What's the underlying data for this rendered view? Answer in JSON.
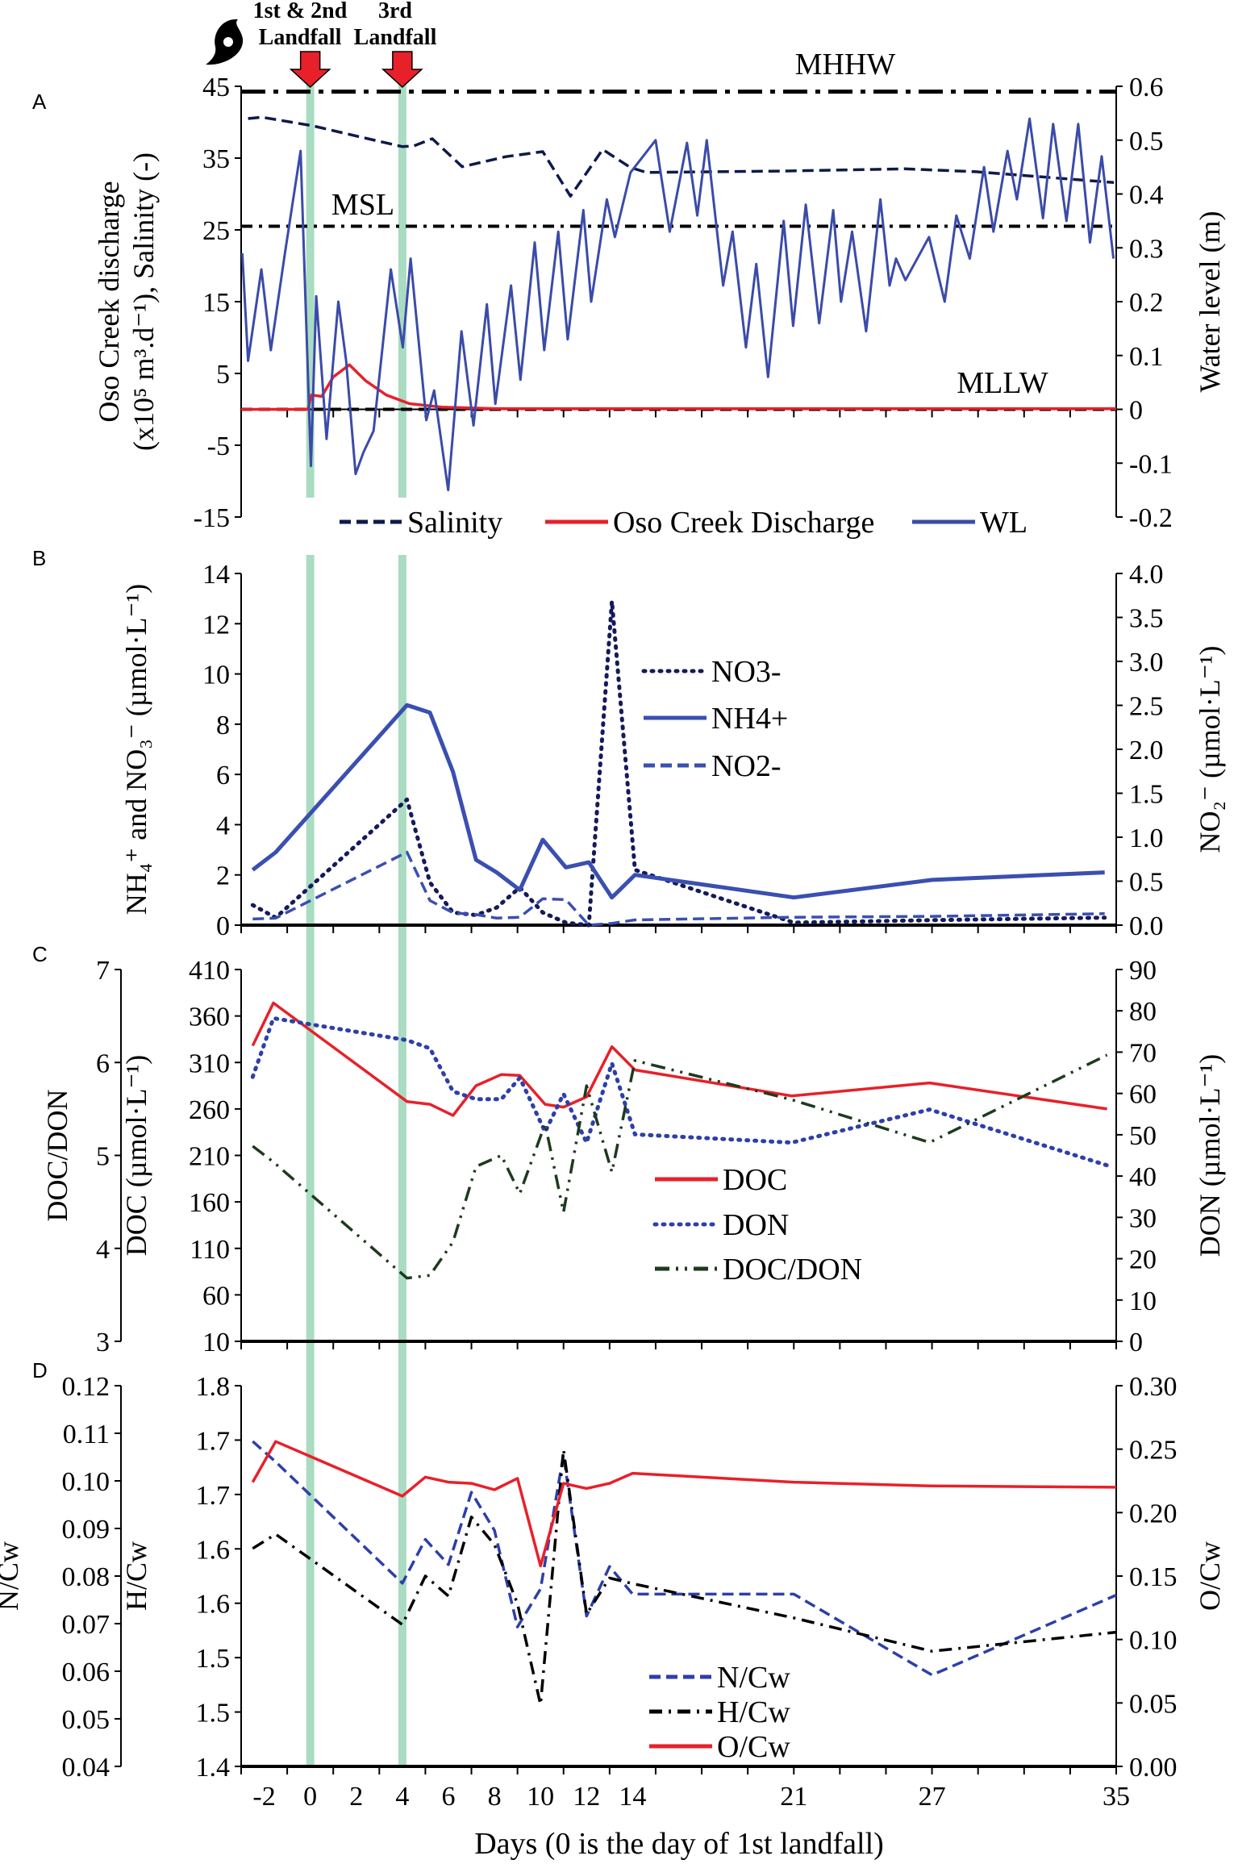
{
  "figure": {
    "annotations": {
      "first_second_landfall_line1": "1st & 2nd",
      "first_second_landfall_line2": "Landfall",
      "third_landfall_line1": "3rd",
      "third_landfall_line2": "Landfall"
    },
    "landfall_days": [
      0,
      4
    ],
    "band_color": "#a9dcc1",
    "arrow_color": "#e8202a",
    "x_axis": {
      "title": "Days (0 is the day of 1st landfall)",
      "xlim": [
        -3,
        35
      ],
      "tick_labels": [
        "-2",
        "0",
        "2",
        "4",
        "6",
        "8",
        "10",
        "12",
        "14",
        "21",
        "27",
        "35"
      ],
      "tick_values": [
        -2,
        0,
        2,
        4,
        6,
        8,
        10,
        12,
        14,
        21,
        27,
        35
      ]
    }
  },
  "chart_data": [
    {
      "letter": "A",
      "type": "line",
      "axes": {
        "left": {
          "label_line1": "Oso Creek discharge",
          "label_line2": "(x10⁵ m³.d⁻¹), Salinity (-)",
          "range": [
            -15,
            45
          ],
          "tick_labels": [
            "-15",
            "-5",
            "5",
            "15",
            "25",
            "35",
            "45"
          ]
        },
        "right": {
          "label": "Water level (m)",
          "range": [
            -0.2,
            0.6
          ],
          "tick_labels": [
            "-0.2",
            "-0.1",
            "0",
            "0.1",
            "0.2",
            "0.3",
            "0.4",
            "0.5",
            "0.6"
          ]
        }
      },
      "reference_lines": [
        {
          "name": "MHHW",
          "axis": "right",
          "value": 0.59
        },
        {
          "name": "MSL",
          "axis": "right",
          "value": 0.34
        },
        {
          "name": "MLLW",
          "axis": "right",
          "value": 0.0
        }
      ],
      "series": [
        {
          "name": "Salinity",
          "axis": "left",
          "color": "#0d1a4a",
          "style": "dash",
          "x": [
            -2.7,
            -2.1,
            0.1,
            2.1,
            4.0,
            4.5,
            5.3,
            6.6,
            8.5,
            10.1,
            11.3,
            12.7,
            13.9,
            14.6,
            20.7,
            25.8,
            28.9,
            34.9
          ],
          "y": [
            40.5,
            40.7,
            39.5,
            38.0,
            36.6,
            36.7,
            37.7,
            33.8,
            35.2,
            35.9,
            29.7,
            36.2,
            33.7,
            33.0,
            33.2,
            33.5,
            33.1,
            31.6
          ]
        },
        {
          "name": "Oso Creek Discharge",
          "axis": "left",
          "color": "#e8202a",
          "style": "solid",
          "x": [
            -3,
            -0.1,
            0.05,
            0.5,
            1.0,
            1.7,
            2.4,
            3.3,
            4.3,
            5.7,
            8,
            35
          ],
          "y": [
            0,
            0,
            2.0,
            1.8,
            4.5,
            6.2,
            4.0,
            2.0,
            0.8,
            0.3,
            0.1,
            0.1
          ]
        },
        {
          "name": "WL",
          "axis": "right",
          "color": "#3b4ba8",
          "style": "solid",
          "x": [
            -2.95,
            -2.7,
            -2.12,
            -1.71,
            -1.1,
            -0.42,
            0.03,
            0.26,
            0.71,
            1.22,
            1.56,
            1.97,
            2.31,
            2.75,
            3.5,
            4.02,
            4.36,
            5.04,
            5.38,
            5.99,
            6.57,
            7.09,
            7.67,
            8.04,
            8.72,
            9.13,
            9.75,
            10.16,
            10.77,
            11.18,
            11.86,
            12.2,
            12.88,
            13.23,
            13.91,
            15.0,
            15.61,
            16.36,
            16.81,
            17.22,
            17.93,
            18.34,
            18.92,
            19.37,
            19.88,
            20.56,
            20.97,
            21.52,
            22.1,
            22.71,
            23.05,
            23.53,
            24.14,
            24.76,
            25.16,
            25.44,
            25.85,
            26.87,
            27.55,
            28.06,
            28.64,
            29.26,
            29.67,
            30.28,
            30.69,
            31.24,
            31.82,
            32.26,
            32.84,
            33.35,
            33.86,
            34.37,
            34.88
          ],
          "y": [
            0.29,
            0.09,
            0.26,
            0.11,
            0.29,
            0.48,
            -0.105,
            0.21,
            -0.055,
            0.2,
            0.09,
            -0.12,
            -0.08,
            -0.04,
            0.26,
            0.115,
            0.28,
            -0.02,
            0.035,
            -0.15,
            0.145,
            -0.03,
            0.195,
            0.01,
            0.23,
            0.055,
            0.31,
            0.11,
            0.33,
            0.13,
            0.37,
            0.2,
            0.39,
            0.32,
            0.44,
            0.5,
            0.33,
            0.495,
            0.36,
            0.5,
            0.23,
            0.33,
            0.115,
            0.27,
            0.06,
            0.35,
            0.155,
            0.38,
            0.16,
            0.37,
            0.2,
            0.33,
            0.145,
            0.39,
            0.23,
            0.28,
            0.24,
            0.32,
            0.2,
            0.36,
            0.28,
            0.45,
            0.33,
            0.48,
            0.39,
            0.54,
            0.355,
            0.53,
            0.35,
            0.53,
            0.31,
            0.47,
            0.28
          ]
        }
      ],
      "legend": {
        "placement": "bottom",
        "entries": [
          "Salinity",
          "Oso Creek Discharge",
          "WL"
        ]
      }
    },
    {
      "letter": "B",
      "type": "line",
      "axes": {
        "left": {
          "label": "NH₄⁺ and NO₃⁻ (µmol·L⁻¹)",
          "range": [
            0,
            14
          ],
          "tick_labels": [
            "0",
            "2",
            "4",
            "6",
            "8",
            "10",
            "12",
            "14"
          ]
        },
        "right": {
          "label": "NO₂⁻ (µmol·L⁻¹)",
          "range": [
            0,
            4
          ],
          "tick_labels": [
            "0.0",
            "0.5",
            "1.0",
            "1.5",
            "2.0",
            "2.5",
            "3.0",
            "3.5",
            "4.0"
          ]
        }
      },
      "series": [
        {
          "name": "NO3-",
          "axis": "left",
          "color": "#141a5a",
          "style": "dot",
          "x": [
            -2.5,
            -1.5,
            4.2,
            5.2,
            6.2,
            7.2,
            8.1,
            9.1,
            10.1,
            11.1,
            12.1,
            13.1,
            14.1,
            21,
            27,
            34.5
          ],
          "y": [
            0.8,
            0.3,
            5.0,
            1.7,
            0.5,
            0.4,
            0.7,
            1.5,
            0.5,
            0.1,
            0.0,
            12.9,
            2.2,
            0.1,
            0.2,
            0.3
          ]
        },
        {
          "name": "NH4+",
          "axis": "left",
          "color": "#3a4fb0",
          "style": "solid",
          "x": [
            -2.5,
            -1.5,
            4.2,
            5.2,
            6.2,
            7.2,
            8.1,
            9.1,
            10.1,
            11.1,
            12.1,
            13.1,
            14.1,
            21,
            27,
            34.5
          ],
          "y": [
            2.2,
            2.9,
            8.76,
            8.46,
            6.1,
            2.6,
            2.1,
            1.4,
            3.4,
            2.3,
            2.5,
            1.1,
            2.0,
            1.1,
            1.8,
            2.1
          ]
        },
        {
          "name": "NO2-",
          "axis": "right",
          "color": "#3a4fb0",
          "style": "dash",
          "x": [
            -2.5,
            -1.5,
            4.2,
            5.2,
            6.2,
            7.2,
            8.1,
            9.1,
            10.1,
            11.1,
            12.1,
            13.1,
            14.1,
            21,
            27,
            34.5
          ],
          "y": [
            0.07,
            0.08,
            0.83,
            0.28,
            0.14,
            0.12,
            0.08,
            0.09,
            0.3,
            0.29,
            0.0,
            0.02,
            0.06,
            0.09,
            0.1,
            0.13
          ]
        }
      ],
      "legend": {
        "placement": "center",
        "entries": [
          "NO3-",
          "NH4+",
          "NO2-"
        ]
      }
    },
    {
      "letter": "C",
      "type": "line",
      "axes": {
        "far_left": {
          "label": "DOC/DON",
          "range": [
            3,
            7
          ],
          "tick_labels": [
            "3",
            "4",
            "5",
            "6",
            "7"
          ]
        },
        "left": {
          "label": "DOC (µmol·L⁻¹)",
          "range": [
            10,
            410
          ],
          "tick_labels": [
            "10",
            "60",
            "110",
            "160",
            "210",
            "260",
            "310",
            "360",
            "410"
          ]
        },
        "right": {
          "label": "DON (µmol·L⁻¹)",
          "range": [
            0,
            90
          ],
          "tick_labels": [
            "0",
            "10",
            "20",
            "30",
            "40",
            "50",
            "60",
            "70",
            "80",
            "90"
          ]
        }
      },
      "series": [
        {
          "name": "DOC",
          "axis": "left",
          "color": "#e8202a",
          "style": "solid",
          "x": [
            -2.5,
            -1.6,
            4.2,
            5.2,
            6.2,
            7.2,
            8.3,
            9.1,
            10.2,
            11.0,
            12.0,
            13.1,
            14.1,
            20.9,
            26.9,
            34.6
          ],
          "y": [
            328,
            374,
            268,
            265,
            253,
            285,
            297,
            296,
            265,
            262,
            273,
            327,
            302,
            274,
            288,
            260
          ]
        },
        {
          "name": "DON",
          "axis": "right",
          "color": "#2d3fa8",
          "style": "dot",
          "x": [
            -2.5,
            -1.6,
            4.2,
            5.2,
            6.2,
            7.2,
            8.3,
            9.1,
            10.2,
            11.0,
            12.0,
            13.1,
            14.1,
            20.9,
            26.9,
            34.6
          ],
          "y": [
            64,
            78.2,
            72.9,
            70.9,
            60.5,
            58.6,
            58.6,
            63.8,
            50.7,
            59.9,
            48.1,
            67.3,
            50.1,
            48.1,
            56.1,
            42.6
          ]
        },
        {
          "name": "DOC/DON",
          "axis": "far_left",
          "color": "#1e3a1e",
          "style": "dashdotdot",
          "x": [
            -2.5,
            -1.6,
            4.2,
            5.2,
            6.2,
            7.2,
            8.3,
            9.1,
            10.2,
            11.0,
            12.0,
            13.1,
            14.1,
            20.9,
            26.9,
            34.6
          ],
          "y": [
            5.1,
            4.93,
            3.68,
            3.71,
            4.07,
            4.88,
            5.0,
            4.59,
            5.34,
            4.39,
            5.75,
            4.82,
            6.02,
            5.6,
            5.14,
            6.08
          ]
        }
      ],
      "legend": {
        "placement": "center",
        "entries": [
          "DOC",
          "DON",
          "DOC/DON"
        ]
      }
    },
    {
      "letter": "D",
      "type": "line",
      "axes": {
        "far_left": {
          "label": "N/Cw",
          "range": [
            0.04,
            0.12
          ],
          "tick_labels": [
            "0.04",
            "0.05",
            "0.06",
            "0.07",
            "0.08",
            "0.09",
            "0.10",
            "0.11",
            "0.12"
          ]
        },
        "left": {
          "label": "H/Cw",
          "range": [
            1.4,
            1.8
          ],
          "tick_labels": [
            "1.4",
            "1.5",
            "1.5",
            "1.6",
            "1.6",
            "1.7",
            "1.7",
            "1.8"
          ]
        },
        "right": {
          "label": "O/Cw",
          "range": [
            0,
            0.3
          ],
          "tick_labels": [
            "0.00",
            "0.05",
            "0.10",
            "0.15",
            "0.20",
            "0.25",
            "0.30"
          ]
        }
      },
      "series": [
        {
          "name": "N/Cw",
          "axis": "far_left",
          "color": "#2d3fa8",
          "style": "dash",
          "x": [
            -2.5,
            -1.5,
            4,
            5,
            6,
            7,
            8,
            9,
            10,
            11,
            12,
            13,
            14,
            21,
            27,
            35
          ],
          "y": [
            0.1083,
            0.104,
            0.0785,
            0.0877,
            0.0824,
            0.0976,
            0.0896,
            0.0693,
            0.0773,
            0.1055,
            0.0716,
            0.082,
            0.0762,
            0.0762,
            0.0592,
            0.076
          ]
        },
        {
          "name": "H/Cw",
          "axis": "left",
          "color": "#000000",
          "style": "dashdot",
          "x": [
            -2.5,
            -1.5,
            4,
            5,
            6,
            7,
            8,
            9,
            10,
            11,
            12,
            13,
            14,
            21,
            27,
            35
          ],
          "y": [
            1.629,
            1.644,
            1.549,
            1.6,
            1.579,
            1.662,
            1.633,
            1.571,
            1.465,
            1.733,
            1.56,
            1.598,
            1.592,
            1.556,
            1.521,
            1.541
          ]
        },
        {
          "name": "O/Cw",
          "axis": "right",
          "color": "#e8202a",
          "style": "solid",
          "x": [
            -2.5,
            -1.5,
            4,
            5,
            6,
            7,
            8,
            9,
            10,
            11,
            12,
            13,
            14,
            21,
            27,
            35
          ],
          "y": [
            0.224,
            0.256,
            0.213,
            0.228,
            0.224,
            0.223,
            0.218,
            0.227,
            0.158,
            0.223,
            0.219,
            0.223,
            0.231,
            0.224,
            0.221,
            0.22
          ]
        }
      ],
      "legend": {
        "placement": "bottom-center",
        "entries": [
          "N/Cw",
          "H/Cw",
          "O/Cw"
        ]
      }
    }
  ]
}
